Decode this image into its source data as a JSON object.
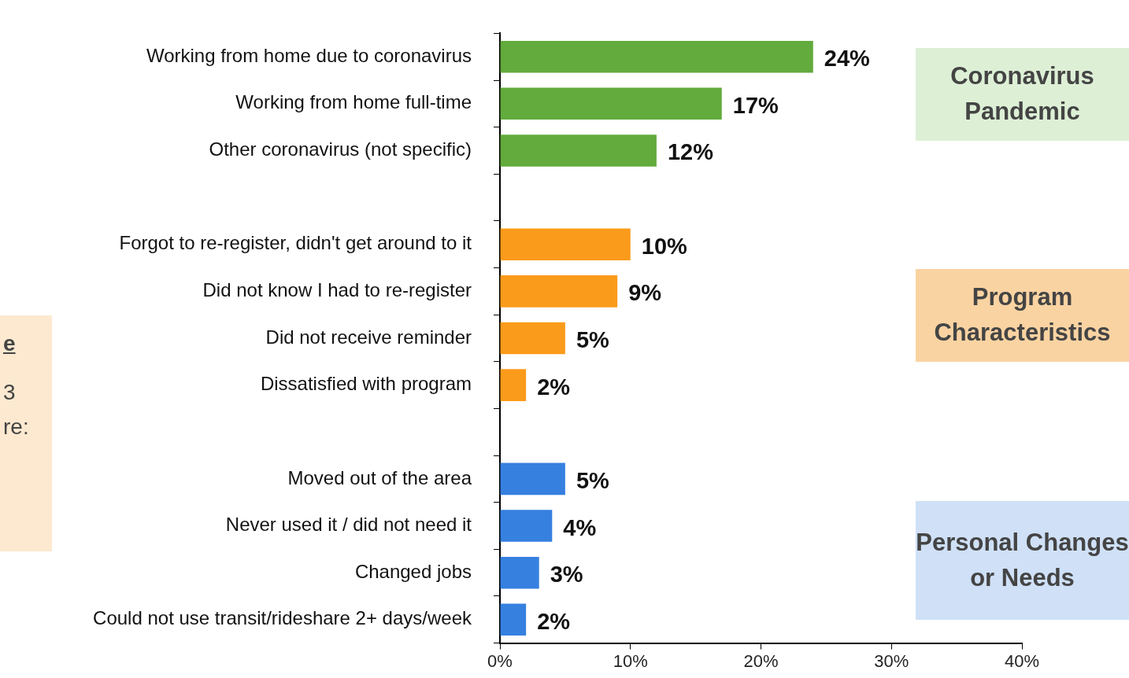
{
  "chart_data": {
    "type": "bar",
    "orientation": "horizontal",
    "categories": [
      "Working from home due to coronavirus",
      "Working from home full-time",
      "Other coronavirus (not specific)",
      null,
      "Forgot to re-register, didn't get around to it",
      "Did not know I had to re-register",
      "Did not receive reminder",
      "Dissatisfied with program",
      null,
      "Moved out of the area",
      "Never used it / did not need it",
      "Changed jobs",
      "Could not use transit/rideshare 2+ days/week"
    ],
    "values": [
      24,
      17,
      12,
      null,
      10,
      9,
      5,
      2,
      null,
      5,
      4,
      3,
      2
    ],
    "value_labels": [
      "24%",
      "17%",
      "12%",
      null,
      "10%",
      "9%",
      "5%",
      "2%",
      null,
      "5%",
      "4%",
      "3%",
      "2%"
    ],
    "colors": [
      "#62ab3c",
      "#62ab3c",
      "#62ab3c",
      null,
      "#fb9b1b",
      "#fb9b1b",
      "#fb9b1b",
      "#fb9b1b",
      null,
      "#3680e0",
      "#3680e0",
      "#3680e0",
      "#3680e0"
    ],
    "xlim": [
      0,
      40
    ],
    "xticks": [
      {
        "value": 0,
        "label": "0%"
      },
      {
        "value": 10,
        "label": "10%"
      },
      {
        "value": 20,
        "label": "20%"
      },
      {
        "value": 30,
        "label": "30%"
      },
      {
        "value": 40,
        "label": "40%"
      }
    ],
    "grid": false,
    "legend": false,
    "annotations": [
      "Coronavirus Pandemic",
      "Program Characteristics",
      "Personal Changes or Needs",
      "e",
      "3",
      "re:"
    ]
  }
}
